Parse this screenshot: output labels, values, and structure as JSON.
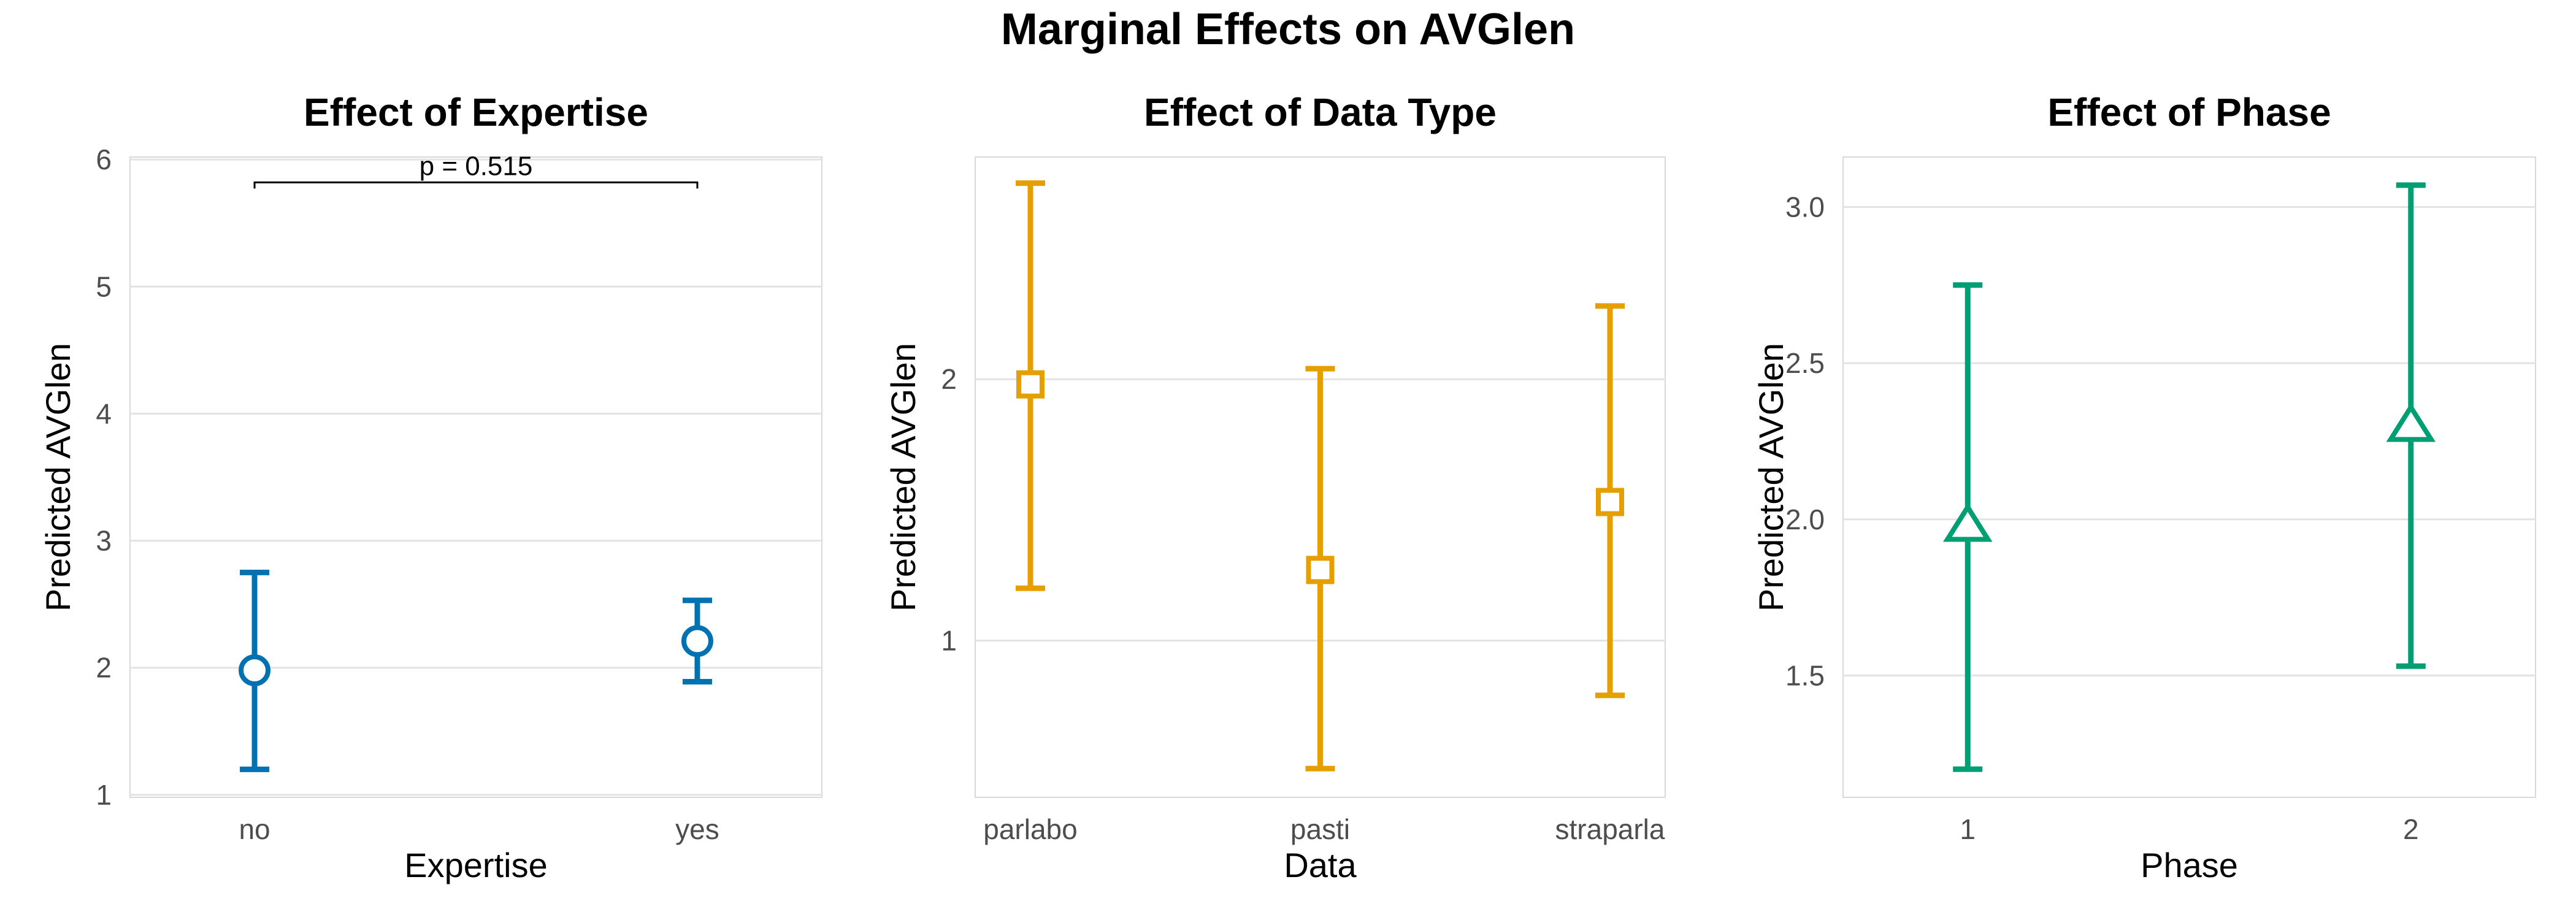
{
  "title": "Marginal Effects on AVGlen",
  "chart_data": [
    {
      "type": "scatter",
      "title": "Effect of Expertise",
      "xlabel": "Expertise",
      "ylabel": "Predicted AVGlen",
      "categories": [
        "no",
        "yes"
      ],
      "ylim": [
        0.98,
        6.02
      ],
      "yticks": [
        1,
        2,
        3,
        4,
        5,
        6
      ],
      "ytick_labels": [
        "1",
        "2",
        "3",
        "4",
        "5",
        "6"
      ],
      "color": "#0072b2",
      "marker": "circle",
      "points": [
        {
          "category": "no",
          "estimate": 1.98,
          "lower": 1.2,
          "upper": 2.75
        },
        {
          "category": "yes",
          "estimate": 2.21,
          "lower": 1.89,
          "upper": 2.53
        }
      ],
      "annotation": {
        "text": "p = 0.515",
        "from": "no",
        "to": "yes",
        "y": 5.82
      },
      "grid": true
    },
    {
      "type": "scatter",
      "title": "Effect of Data Type",
      "xlabel": "Data",
      "ylabel": "Predicted AVGlen",
      "categories": [
        "parlabo",
        "pasti",
        "straparla"
      ],
      "ylim": [
        0.4,
        2.85
      ],
      "yticks": [
        1,
        2
      ],
      "ytick_labels": [
        "1",
        "2"
      ],
      "color": "#e69f00",
      "marker": "square",
      "points": [
        {
          "category": "parlabo",
          "estimate": 1.98,
          "lower": 1.2,
          "upper": 2.75
        },
        {
          "category": "pasti",
          "estimate": 1.27,
          "lower": 0.51,
          "upper": 2.04
        },
        {
          "category": "straparla",
          "estimate": 1.53,
          "lower": 0.79,
          "upper": 2.28
        }
      ],
      "grid": true
    },
    {
      "type": "scatter",
      "title": "Effect of Phase",
      "xlabel": "Phase",
      "ylabel": "Predicted AVGlen",
      "categories": [
        "1",
        "2"
      ],
      "ylim": [
        1.11,
        3.16
      ],
      "yticks": [
        1.5,
        2.0,
        2.5,
        3.0
      ],
      "ytick_labels": [
        "1.5",
        "2.0",
        "2.5",
        "3.0"
      ],
      "color": "#009e73",
      "marker": "triangle",
      "points": [
        {
          "category": "1",
          "estimate": 1.98,
          "lower": 1.2,
          "upper": 2.75
        },
        {
          "category": "2",
          "estimate": 2.3,
          "lower": 1.53,
          "upper": 3.07
        }
      ],
      "grid": true
    }
  ]
}
